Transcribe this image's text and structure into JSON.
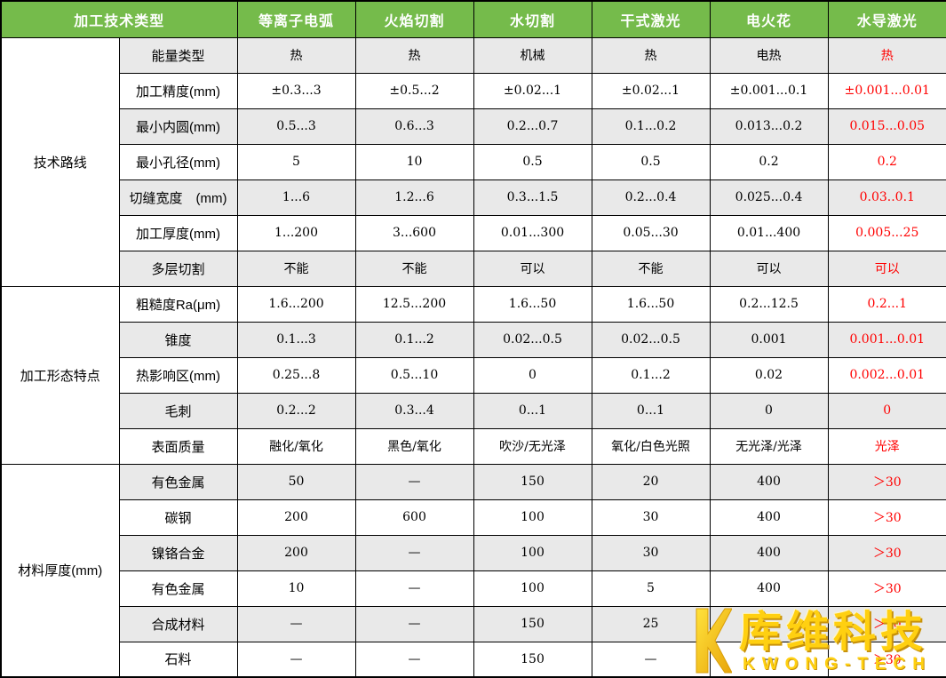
{
  "chart_data": {
    "type": "table",
    "title": "加工技术类型",
    "corner_header": "加工技术类型",
    "tech_columns": [
      "等离子电弧",
      "火焰切割",
      "水切割",
      "干式激光",
      "电火花",
      "水导激光"
    ],
    "highlight_column": "水导激光",
    "row_groups": [
      {
        "label": "技术路线",
        "rows": [
          {
            "label": "能量类型",
            "values": [
              "热",
              "热",
              "机械",
              "热",
              "电热",
              "热"
            ]
          },
          {
            "label": "加工精度(mm)",
            "values": [
              "±0.3...3",
              "±0.5...2",
              "±0.02...1",
              "±0.02...1",
              "±0.001...0.1",
              "±0.001...0.01"
            ]
          },
          {
            "label": "最小内圆(mm)",
            "values": [
              "0.5...3",
              "0.6...3",
              "0.2...0.7",
              "0.1...0.2",
              "0.013...0.2",
              "0.015...0.05"
            ]
          },
          {
            "label": "最小孔径(mm)",
            "values": [
              "5",
              "10",
              "0.5",
              "0.5",
              "0.2",
              "0.2"
            ]
          },
          {
            "label": "切缝宽度　(mm)",
            "values": [
              "1...6",
              "1.2...6",
              "0.3...1.5",
              "0.2...0.4",
              "0.025...0.4",
              "0.03..0.1"
            ]
          },
          {
            "label": "加工厚度(mm)",
            "values": [
              "1...200",
              "3...600",
              "0.01...300",
              "0.05...30",
              "0.01...400",
              "0.005...25"
            ]
          },
          {
            "label": "多层切割",
            "values": [
              "不能",
              "不能",
              "可以",
              "不能",
              "可以",
              "可以"
            ]
          }
        ]
      },
      {
        "label": "加工形态特点",
        "rows": [
          {
            "label": "粗糙度Ra(μm)",
            "values": [
              "1.6...200",
              "12.5...200",
              "1.6...50",
              "1.6...50",
              "0.2...12.5",
              "0.2...1"
            ]
          },
          {
            "label": "锥度",
            "values": [
              "0.1...3",
              "0.1...2",
              "0.02...0.5",
              "0.02...0.5",
              "0.001",
              "0.001...0.01"
            ]
          },
          {
            "label": "热影响区(mm)",
            "values": [
              "0.25...8",
              "0.5...10",
              "0",
              "0.1...2",
              "0.02",
              "0.002...0.01"
            ]
          },
          {
            "label": "毛刺",
            "values": [
              "0.2...2",
              "0.3...4",
              "0...1",
              "0...1",
              "0",
              "0"
            ]
          },
          {
            "label": "表面质量",
            "values": [
              "融化/氧化",
              "黑色/氧化",
              "吹沙/无光泽",
              "氧化/白色光照",
              "无光泽/光泽",
              "光泽"
            ]
          }
        ]
      },
      {
        "label": "材料厚度(mm)",
        "rows": [
          {
            "label": "有色金属",
            "values": [
              "50",
              "—",
              "150",
              "20",
              "400",
              "＞30"
            ]
          },
          {
            "label": "碳钢",
            "values": [
              "200",
              "600",
              "100",
              "30",
              "400",
              "＞30"
            ]
          },
          {
            "label": "镍铬合金",
            "values": [
              "200",
              "—",
              "100",
              "30",
              "400",
              "＞30"
            ]
          },
          {
            "label": "有色金属",
            "values": [
              "10",
              "—",
              "100",
              "5",
              "400",
              "＞30"
            ]
          },
          {
            "label": "合成材料",
            "values": [
              "—",
              "—",
              "150",
              "25",
              "—",
              "＞30"
            ]
          },
          {
            "label": "石料",
            "values": [
              "—",
              "—",
              "150",
              "—",
              "—",
              "＞30"
            ]
          }
        ]
      }
    ]
  },
  "watermark": {
    "icon": "kwong-tech-k-logo",
    "cn": "库维科技",
    "en": "KWONG-TECH"
  },
  "colors": {
    "header_green": "#75BB4B",
    "row_gray": "#E9E9E9",
    "highlight_red": "#FF0000",
    "logo_gold": "#FFD011"
  }
}
